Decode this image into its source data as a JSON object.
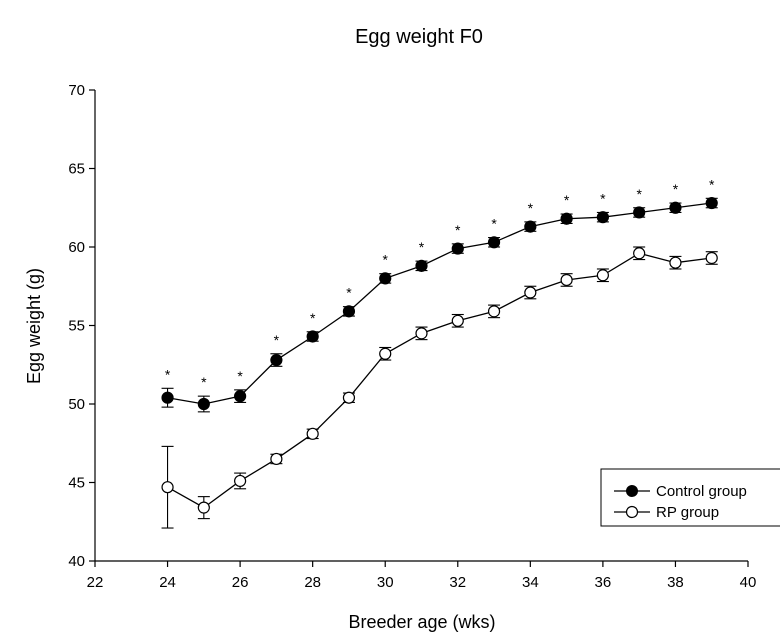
{
  "chart_data": {
    "type": "line",
    "title": "Egg weight F0",
    "xlabel": "Breeder age (wks)",
    "ylabel": "Egg weight (g)",
    "xlim": [
      22,
      40
    ],
    "ylim": [
      40,
      70
    ],
    "xticks": [
      22,
      24,
      26,
      28,
      30,
      32,
      34,
      36,
      38,
      40
    ],
    "yticks": [
      40,
      45,
      50,
      55,
      60,
      65,
      70
    ],
    "grid": false,
    "legend_position": "bottom-right",
    "significance_marker": "*",
    "x": [
      24,
      25,
      26,
      27,
      28,
      29,
      30,
      31,
      32,
      33,
      34,
      35,
      36,
      37,
      38,
      39
    ],
    "series": [
      {
        "name": "Control group",
        "marker": "filled-circle",
        "color": "#000000",
        "values": [
          50.4,
          50.0,
          50.5,
          52.8,
          54.3,
          55.9,
          58.0,
          58.8,
          59.9,
          60.3,
          61.3,
          61.8,
          61.9,
          62.2,
          62.5,
          62.8
        ],
        "errors": [
          0.6,
          0.5,
          0.4,
          0.4,
          0.3,
          0.3,
          0.3,
          0.3,
          0.3,
          0.3,
          0.3,
          0.3,
          0.3,
          0.3,
          0.3,
          0.3
        ]
      },
      {
        "name": "RP group",
        "marker": "open-circle",
        "color": "#000000",
        "values": [
          44.7,
          43.4,
          45.1,
          46.5,
          48.1,
          50.4,
          53.2,
          54.5,
          55.3,
          55.9,
          57.1,
          57.9,
          58.2,
          59.6,
          59.0,
          59.3
        ],
        "errors": [
          2.6,
          0.7,
          0.5,
          0.3,
          0.3,
          0.3,
          0.4,
          0.4,
          0.4,
          0.4,
          0.4,
          0.4,
          0.4,
          0.4,
          0.4,
          0.4
        ]
      }
    ],
    "significant_points_x": [
      24,
      25,
      26,
      27,
      28,
      29,
      30,
      31,
      32,
      33,
      34,
      35,
      36,
      37,
      38,
      39
    ]
  }
}
